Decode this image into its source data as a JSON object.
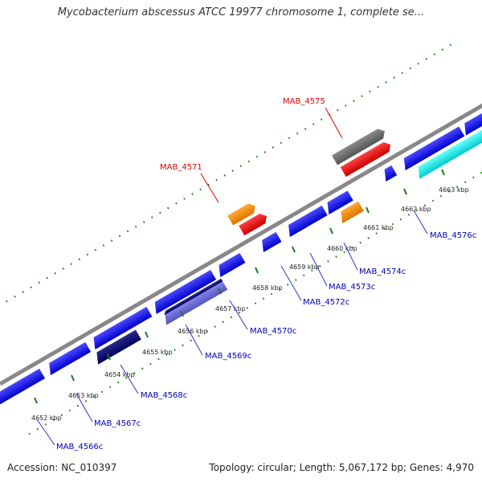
{
  "title": "Mycobacterium abscessus ATCC 19977 chromosome 1, complete se...",
  "footer": {
    "accession": "Accession: NC_010397",
    "summary": "Topology: circular; Length: 5,067,172 bp; Genes: 4,970"
  },
  "colors": {
    "backbone": "#888888",
    "tick": "#1a7a1a",
    "label_highlight": "#dd0000",
    "label_normal": "#0000bb",
    "leader_highlight": "#dd0000",
    "leader_normal": "#3333cc"
  },
  "ticks": [
    {
      "label": "4652 kbp"
    },
    {
      "label": "4653 kbp"
    },
    {
      "label": "4654 kbp"
    },
    {
      "label": "4655 kbp"
    },
    {
      "label": "4656 kbp"
    },
    {
      "label": "4657 kbp"
    },
    {
      "label": "4658 kbp"
    },
    {
      "label": "4659 kbp"
    },
    {
      "label": "4660 kbp"
    },
    {
      "label": "4661 kbp"
    },
    {
      "label": "4662 kbp"
    },
    {
      "label": "4663 kbp"
    }
  ],
  "labels": [
    {
      "text": "MAB_4575",
      "highlight": true
    },
    {
      "text": "MAB_4571",
      "highlight": true
    },
    {
      "text": "MAB_4576c",
      "highlight": false
    },
    {
      "text": "MAB_4574c",
      "highlight": false
    },
    {
      "text": "MAB_4573c",
      "highlight": false
    },
    {
      "text": "MAB_4572c",
      "highlight": false
    },
    {
      "text": "MAB_4570c",
      "highlight": false
    },
    {
      "text": "MAB_4569c",
      "highlight": false
    },
    {
      "text": "MAB_4568c",
      "highlight": false
    },
    {
      "text": "MAB_4567c",
      "highlight": false
    },
    {
      "text": "MAB_4566c",
      "highlight": false
    }
  ]
}
